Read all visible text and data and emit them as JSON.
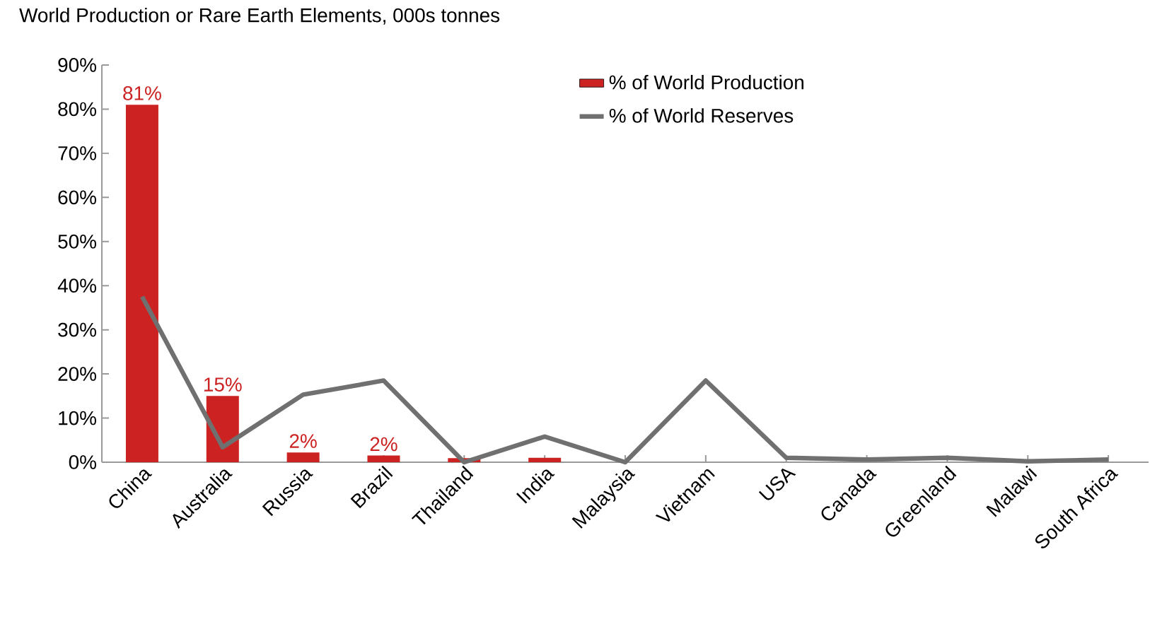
{
  "chart_data": {
    "type": "bar",
    "title": "World Production or Rare Earth Elements, 000s tonnes",
    "categories": [
      "China",
      "Australia",
      "Russia",
      "Brazil",
      "Thailand",
      "India",
      "Malaysia",
      "Vietnam",
      "USA",
      "Canada",
      "Greenland",
      "Malawi",
      "South Africa"
    ],
    "series": [
      {
        "name": "% of World Production",
        "color": "#cc2222",
        "values": [
          81,
          15,
          2.2,
          1.5,
          0.9,
          1,
          null,
          null,
          null,
          null,
          null,
          null,
          null
        ],
        "value_labels": [
          "81%",
          "15%",
          "2%",
          "2%",
          null,
          null,
          null,
          null,
          null,
          null,
          null,
          null,
          null
        ]
      },
      {
        "name": "% of World Reserves",
        "type": "line",
        "color": "#707070",
        "values": [
          37.5,
          3.4,
          15.3,
          18.5,
          0,
          5.8,
          0,
          18.5,
          1,
          0.6,
          1,
          0.2,
          0.6
        ]
      }
    ],
    "ylim": [
      0,
      90
    ],
    "yticks": [
      {
        "value": 0,
        "label": "0%"
      },
      {
        "value": 10,
        "label": "10%"
      },
      {
        "value": 20,
        "label": "20%"
      },
      {
        "value": 30,
        "label": "30%"
      },
      {
        "value": 40,
        "label": "40%"
      },
      {
        "value": 50,
        "label": "50%"
      },
      {
        "value": 60,
        "label": "60%"
      },
      {
        "value": 70,
        "label": "70%"
      },
      {
        "value": 80,
        "label": "80%"
      },
      {
        "value": 90,
        "label": "90%"
      }
    ],
    "legend": "top",
    "grid": false
  }
}
